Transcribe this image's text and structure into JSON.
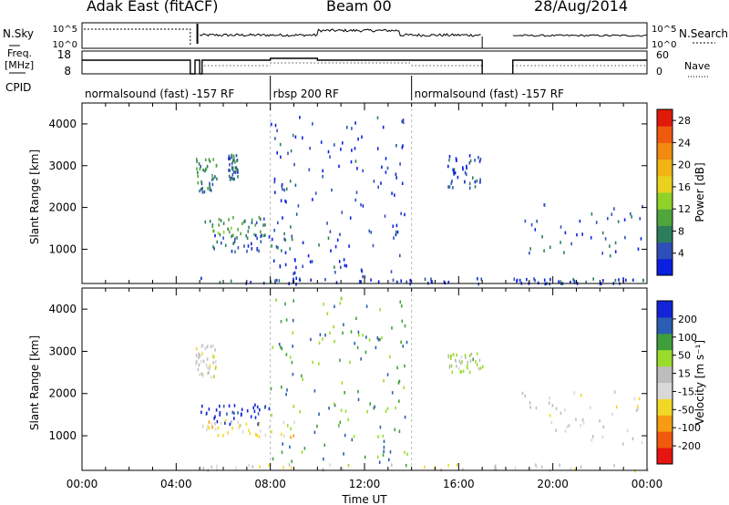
{
  "header": {
    "station": "Adak East (fitACF)",
    "beam": "Beam 00",
    "date": "28/Aug/2014"
  },
  "side_labels": {
    "nsky": "N.Sky",
    "freq": "Freq.",
    "freq_unit": "[MHz]",
    "cpid": "CPID",
    "nsearch": "N.Search",
    "nave": "Nave"
  },
  "noise_panel": {
    "left_ticks": [
      "10^5",
      "10^0"
    ],
    "right_ticks": [
      "10^5",
      "10^0"
    ]
  },
  "freq_panel": {
    "left_ticks": [
      "18",
      "8"
    ],
    "right_ticks": [
      "60",
      "0"
    ]
  },
  "cpid_segments": [
    {
      "start": 0,
      "end": 8,
      "label": "normalsound (fast) -157 RF"
    },
    {
      "start": 8,
      "end": 14,
      "label": "rbsp 200 RF"
    },
    {
      "start": 14,
      "end": 24,
      "label": "normalsound (fast) -157 RF"
    }
  ],
  "colors": {
    "power": [
      "#0a1fe0",
      "#2f4fb8",
      "#2c7e5a",
      "#4fa63c",
      "#8fd22a",
      "#e8d21e",
      "#f0b414",
      "#f08a10",
      "#ee5a0e",
      "#e01b0b"
    ],
    "velocity": [
      "#e6150f",
      "#f05a0d",
      "#f59c12",
      "#f2d826",
      "#d8d8d8",
      "#bdbdbd",
      "#9adc2c",
      "#3f9e3c",
      "#2a5db3",
      "#1323d8"
    ]
  },
  "chart_data": [
    {
      "type": "heatmap",
      "name": "power",
      "xlabel": "",
      "ylabel": "Slant Range [km]",
      "xlim": [
        0,
        24
      ],
      "ylim": [
        180,
        4500
      ],
      "yticks": [
        "1000",
        "2000",
        "3000",
        "4000"
      ],
      "colorbar": {
        "label": "Power [dB]",
        "ticks": [
          "4",
          "8",
          "12",
          "16",
          "20",
          "24",
          "28"
        ],
        "range": [
          0,
          30
        ]
      },
      "regions": [
        {
          "x": [
            4.8,
            5.7
          ],
          "range": [
            2400,
            3200
          ],
          "value": 8
        },
        {
          "x": [
            6.2,
            6.6
          ],
          "range": [
            2700,
            3300
          ],
          "value": 6
        },
        {
          "x": [
            5.0,
            7.8
          ],
          "range": [
            1300,
            1800
          ],
          "value": 9
        },
        {
          "x": [
            5.5,
            9.0
          ],
          "range": [
            950,
            1400
          ],
          "value": 5
        },
        {
          "x": [
            8.0,
            13.8
          ],
          "range": [
            300,
            4300
          ],
          "value": 3
        },
        {
          "x": [
            15.5,
            17.0
          ],
          "range": [
            2500,
            3300
          ],
          "value": 4
        },
        {
          "x": [
            18.6,
            23.8
          ],
          "range": [
            800,
            2100
          ],
          "value": 4
        },
        {
          "x": [
            5.0,
            17.0
          ],
          "range": [
            200,
            350
          ],
          "value": 3
        },
        {
          "x": [
            18.2,
            24.0
          ],
          "range": [
            200,
            330
          ],
          "value": 3
        }
      ]
    },
    {
      "type": "heatmap",
      "name": "velocity",
      "xlabel": "Time UT",
      "ylabel": "Slant Range [km]",
      "xlim": [
        0,
        24
      ],
      "ylim": [
        180,
        4500
      ],
      "xticks": [
        "00:00",
        "04:00",
        "08:00",
        "12:00",
        "16:00",
        "20:00",
        "00:00"
      ],
      "yticks": [
        "1000",
        "2000",
        "3000",
        "4000"
      ],
      "colorbar": {
        "label": "Velocity [m s⁻¹]",
        "ticks": [
          "200",
          "100",
          "50",
          "15",
          "-15",
          "-50",
          "-100",
          "-200"
        ],
        "range": [
          -250,
          250
        ]
      },
      "regions": [
        {
          "x": [
            4.8,
            5.7
          ],
          "range": [
            2400,
            3200
          ],
          "value": 0
        },
        {
          "x": [
            5.0,
            8.0
          ],
          "range": [
            1300,
            1800
          ],
          "value": 230
        },
        {
          "x": [
            5.0,
            9.0
          ],
          "range": [
            1000,
            1400
          ],
          "value": -60
        },
        {
          "x": [
            8.0,
            13.8
          ],
          "range": [
            300,
            4300
          ],
          "value": 120
        },
        {
          "x": [
            15.5,
            17.0
          ],
          "range": [
            2500,
            3000
          ],
          "value": 40
        },
        {
          "x": [
            18.6,
            23.8
          ],
          "range": [
            800,
            2100
          ],
          "value": -10
        },
        {
          "x": [
            5.0,
            24.0
          ],
          "range": [
            200,
            350
          ],
          "value": -30
        }
      ]
    }
  ]
}
